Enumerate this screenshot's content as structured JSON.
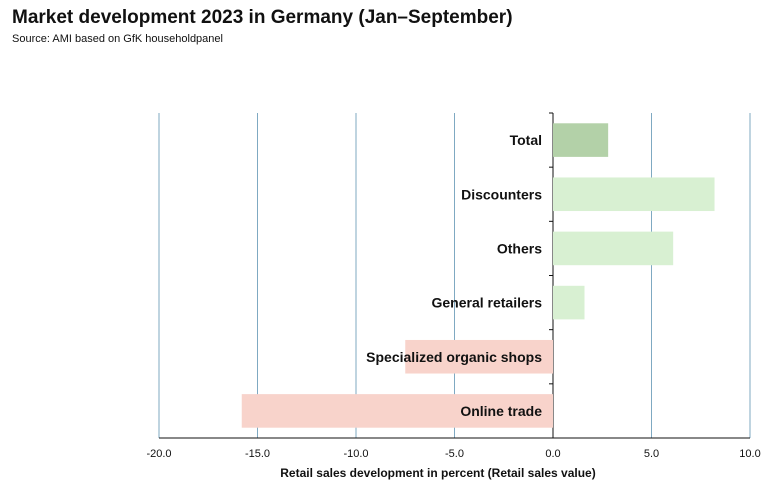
{
  "chart_data": {
    "type": "bar",
    "orientation": "horizontal",
    "title": "Market development 2023 in Germany (Jan–September)",
    "subtitle": "Source: AMI based on GfK householdpanel",
    "xlabel": "Retail sales development in percent (Retail sales value)",
    "ylabel": "",
    "xlim": [
      -20,
      10
    ],
    "xticks": [
      -20,
      -15,
      -10,
      -5,
      0,
      5,
      10
    ],
    "xtick_labels": [
      "-20.0",
      "-15.0",
      "-10.0",
      "-5.0",
      "0.0",
      "5.0",
      "10.0"
    ],
    "grid": "vertical",
    "legend": "none",
    "categories": [
      "Total",
      "Discounters",
      "Others",
      "General retailers",
      "Specialized organic shops",
      "Online trade"
    ],
    "values": [
      2.8,
      8.2,
      6.1,
      1.6,
      -7.5,
      -15.8
    ],
    "colors": {
      "total": "#b3d1a8",
      "positive": "#d8f0d2",
      "negative": "#f8d3cb",
      "grid": "#7fa9c2"
    }
  }
}
